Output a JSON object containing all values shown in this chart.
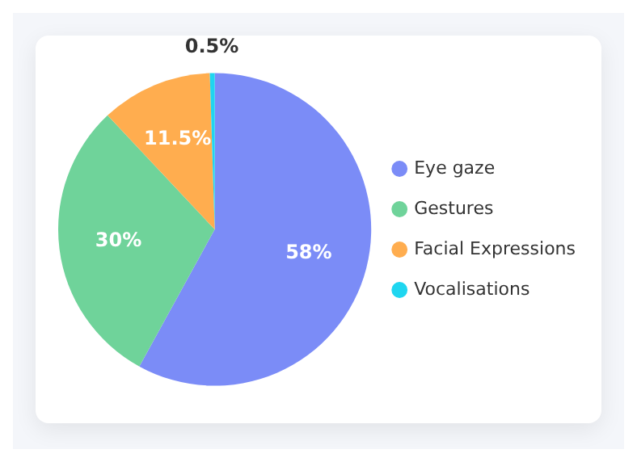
{
  "chart_data": {
    "type": "pie",
    "categories": [
      "Eye gaze",
      "Gestures",
      "Facial Expressions",
      "Vocalisations"
    ],
    "values": [
      58,
      30,
      11.5,
      0.5
    ],
    "colors": [
      "#7b8cf7",
      "#6fd39a",
      "#ffad4f",
      "#1fd6f0"
    ],
    "value_labels": [
      "58%",
      "30%",
      "11.5%",
      "0.5%"
    ],
    "legend": "right"
  }
}
